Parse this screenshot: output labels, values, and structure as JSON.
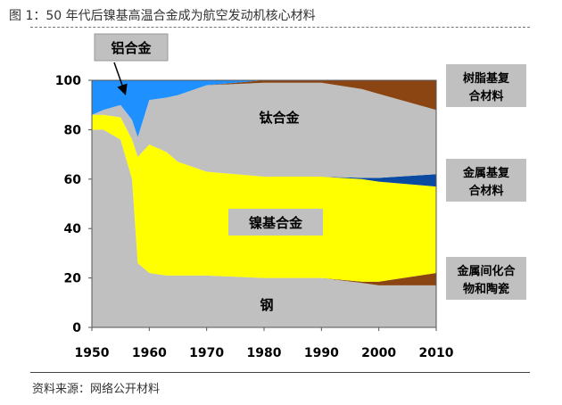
{
  "figure_title": "图 1：50 年代后镍基高温合金成为航空发动机核心材料",
  "source": "资料来源：网络公开材料",
  "chart_data": {
    "type": "area",
    "stacked": true,
    "x": [
      1950,
      1952,
      1955,
      1957,
      1958,
      1960,
      1963,
      1965,
      1970,
      1980,
      1990,
      1997,
      2000,
      2010
    ],
    "ylim": [
      0,
      100
    ],
    "xlim": [
      1950,
      2010
    ],
    "xticks": [
      "1950",
      "1960",
      "1970",
      "1980",
      "1990",
      "2000",
      "2010"
    ],
    "yticks": [
      "0",
      "20",
      "40",
      "60",
      "80",
      "100"
    ],
    "grid": false,
    "series": [
      {
        "name": "钢",
        "color": "#c0c0c0",
        "values": [
          80,
          80,
          76,
          60,
          26,
          22,
          21,
          21,
          21,
          20,
          20,
          18,
          17,
          17
        ]
      },
      {
        "name": "金属间化合物和陶瓷",
        "color": "#8b4513",
        "values": [
          0,
          0,
          0,
          0,
          0,
          0,
          0,
          0,
          0,
          0,
          0,
          0.5,
          1.5,
          5
        ]
      },
      {
        "name": "镍基合金",
        "color": "#ffff00",
        "values": [
          6,
          6,
          9,
          16,
          43,
          52,
          50,
          46,
          42,
          41,
          41,
          41.5,
          40.5,
          35
        ]
      },
      {
        "name": "金属基复合材料",
        "color": "#0a4aa0",
        "values": [
          0,
          0,
          0,
          0,
          0,
          0,
          0,
          0,
          0,
          0,
          0,
          0.5,
          1.5,
          5
        ]
      },
      {
        "name": "钛合金",
        "color": "#c0c0c0",
        "values": [
          0,
          2,
          5,
          8,
          8,
          18,
          22,
          27,
          35,
          38,
          38,
          36,
          34,
          26
        ]
      },
      {
        "name": "树脂基复合材料",
        "color": "#8b4513",
        "values": [
          0,
          0,
          0,
          0,
          0,
          0,
          0,
          0,
          0,
          1,
          1,
          3.5,
          5.5,
          12
        ]
      },
      {
        "name": "铝合金",
        "color": "#1e90ff",
        "values": [
          14,
          12,
          10,
          16,
          23,
          8,
          7,
          6,
          2,
          0,
          0,
          0,
          0,
          0
        ]
      }
    ],
    "labels": {
      "aluminum": "铝合金",
      "titanium": "钛合金",
      "nickel": "镍基合金",
      "steel": "钢",
      "resin": "树脂基复合材料",
      "mmc": "金属基复合材料",
      "intermetallic": "金属间化合物和陶瓷"
    }
  }
}
